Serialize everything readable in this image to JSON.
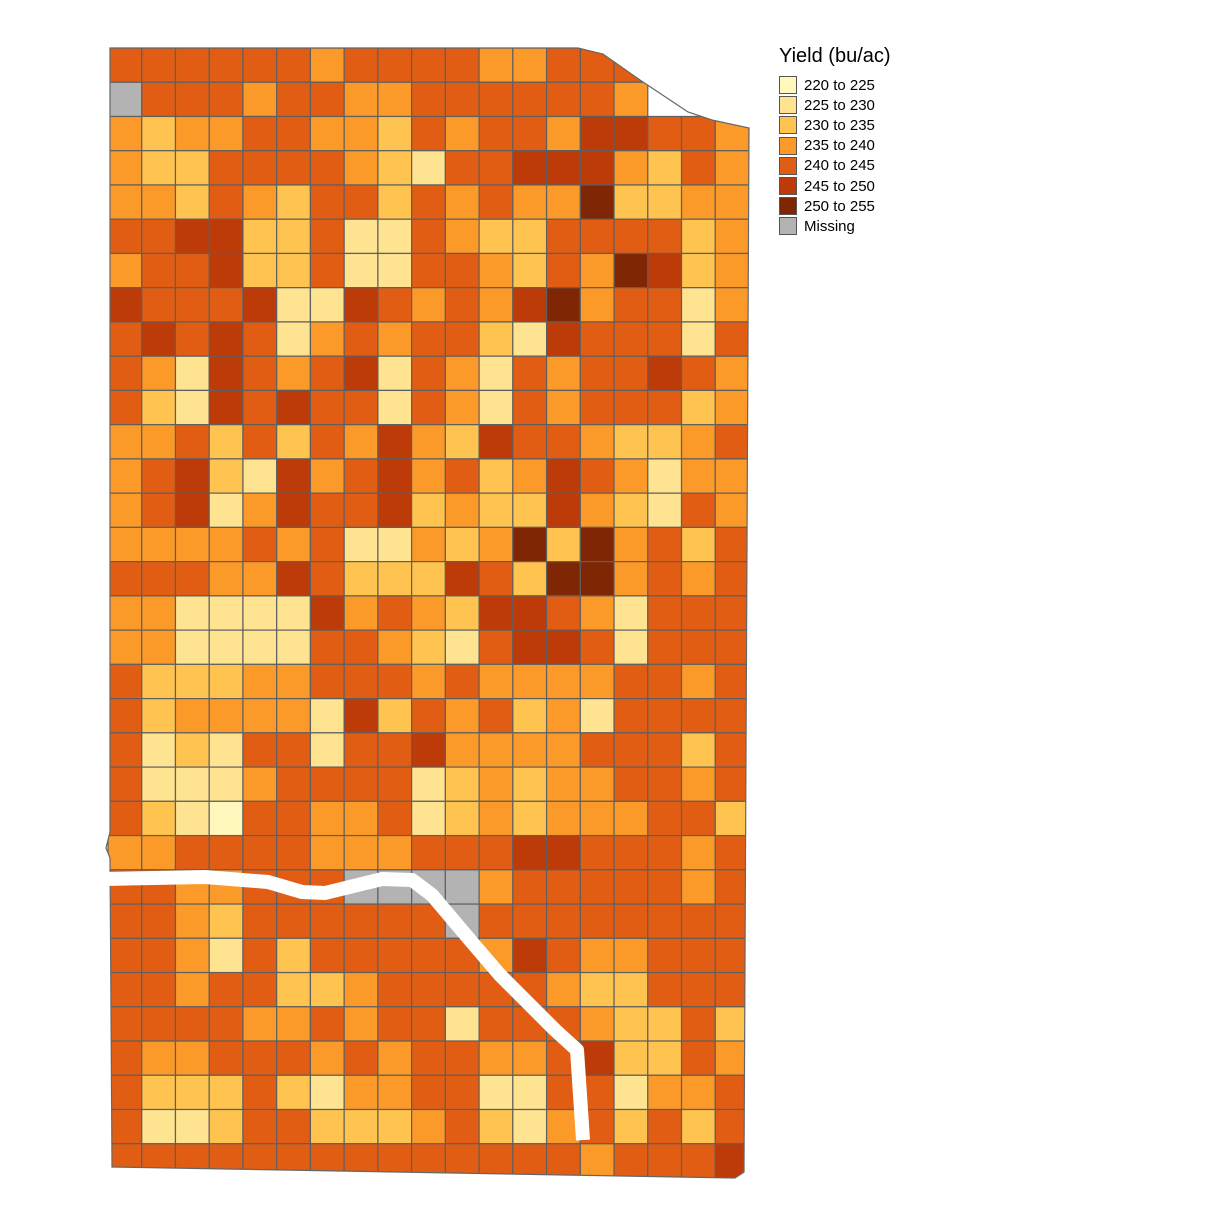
{
  "legend": {
    "title": "Yield (bu/ac)",
    "items": [
      {
        "label": "220 to 225",
        "color": "#fff7bc"
      },
      {
        "label": "225 to 230",
        "color": "#fee391"
      },
      {
        "label": "230 to 235",
        "color": "#fec44f"
      },
      {
        "label": "235 to 240",
        "color": "#fb9a29"
      },
      {
        "label": "240 to 245",
        "color": "#e15d13"
      },
      {
        "label": "245 to 250",
        "color": "#bd3a09"
      },
      {
        "label": "250 to 255",
        "color": "#7f2704"
      },
      {
        "label": "Missing",
        "color": "#b3b3b3"
      }
    ]
  },
  "map": {
    "grid_note": "Each row lists yield class codes (0=220-225 ... 6=250-255, M=Missing, _=outside field), columns west to east.",
    "rows": [
      "44444434444334444__",
      "M444344334444443___",
      "3233443324344355443",
      "3224444321445553243",
      "3324324424343362233",
      "4455224114322444423",
      "3445224114432436523",
      "5444511543435634413",
      "4545413434421544414",
      "4315434514314344543",
      "4215454414314344423",
      "3342424353254432234",
      "3452153453423543133",
      "3451354452322532143",
      "3333434113236263424",
      "4443354222542663434",
      "3311115343255431444",
      "3311114432145541444",
      "4222334443433334434",
      "4233331524342314444",
      "4121441445333344424",
      "4111344441232334434",
      "4210443341232333442",
      "3344443334445544434",
      "4433444MMMM34444434",
      "4432444444M44444444",
      "4431424444435433444",
      "4434422344444322444",
      "4444334344144432242",
      "4334443434433452243",
      "4222421334411441334",
      "4112442223421342424",
      "4444444444444434445"
    ]
  }
}
